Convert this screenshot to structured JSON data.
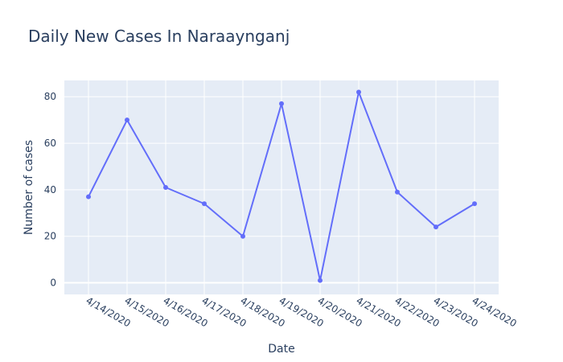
{
  "chart_data": {
    "type": "line",
    "title": "Daily New Cases In Naraaynganj",
    "xlabel": "Date",
    "ylabel": "Number of cases",
    "x": [
      "4/14/2020",
      "4/15/2020",
      "4/16/2020",
      "4/17/2020",
      "4/18/2020",
      "4/19/2020",
      "4/20/2020",
      "4/21/2020",
      "4/22/2020",
      "4/23/2020",
      "4/24/2020"
    ],
    "series": [
      {
        "values": [
          37,
          70,
          41,
          34,
          20,
          77,
          1,
          82,
          39,
          24,
          34
        ]
      }
    ],
    "ylim": [
      -5,
      87
    ],
    "yticks": [
      "0",
      "20",
      "40",
      "60",
      "80"
    ],
    "grid": true,
    "colors": {
      "line": "#636efa",
      "plot_bg": "#e5ecf6",
      "grid": "#ffffff",
      "text": "#2a3f5f"
    }
  }
}
